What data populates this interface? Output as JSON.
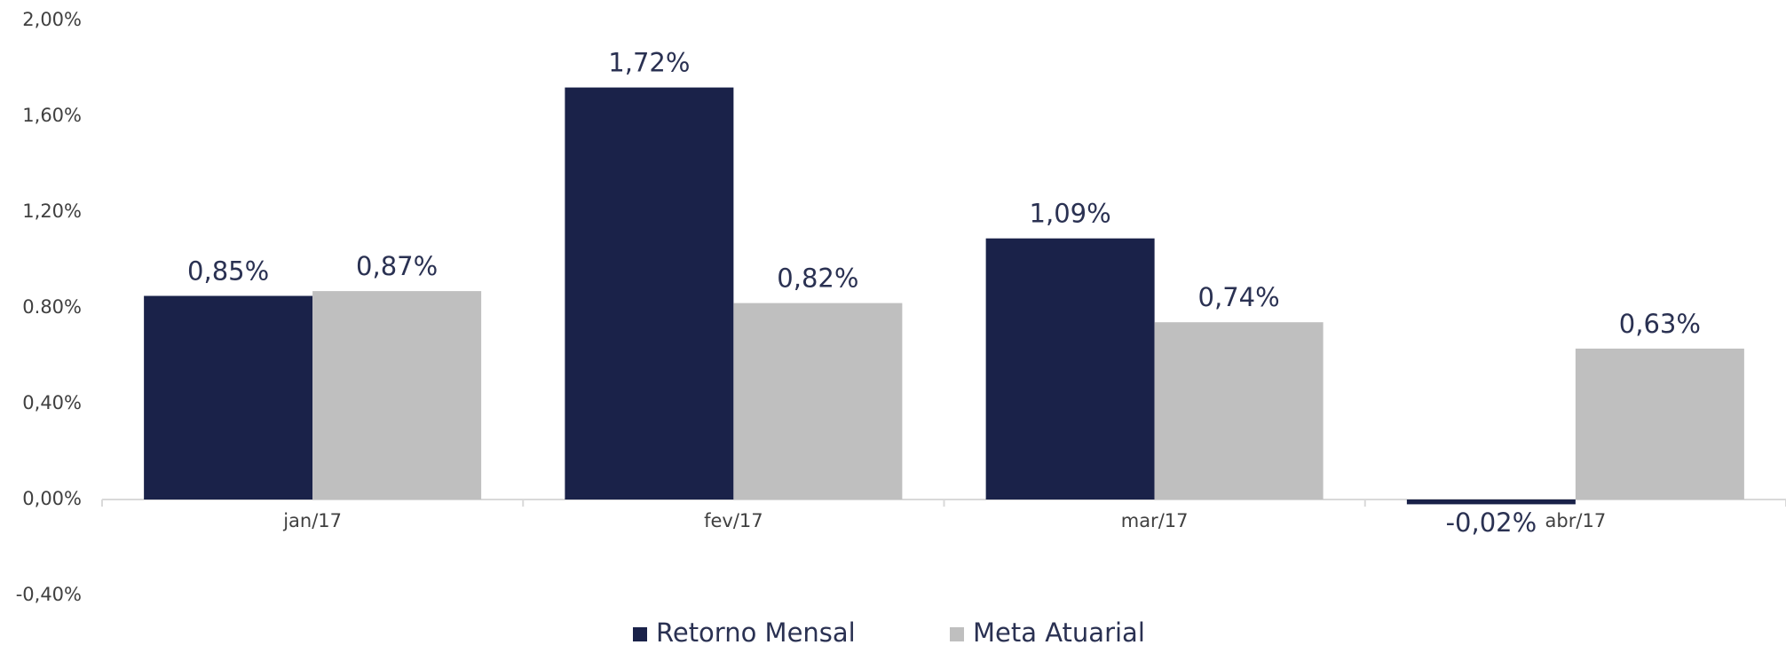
{
  "chart_data": {
    "type": "bar",
    "categories": [
      "jan/17",
      "fev/17",
      "mar/17",
      "abr/17"
    ],
    "series": [
      {
        "name": "Retorno Mensal",
        "color": "#1a2249",
        "values": [
          0.85,
          1.72,
          1.09,
          -0.02
        ],
        "value_labels": [
          "0,85%",
          "1,72%",
          "1,09%",
          "-0,02%"
        ]
      },
      {
        "name": "Meta Atuarial",
        "color": "#bfbfbf",
        "values": [
          0.87,
          0.82,
          0.74,
          0.63
        ],
        "value_labels": [
          "0,87%",
          "0,82%",
          "0,74%",
          "0,63%"
        ]
      }
    ],
    "ylim": [
      -0.4,
      2.0
    ],
    "yticks": [
      {
        "value": -0.4,
        "label": "-0,40%"
      },
      {
        "value": 0,
        "label": "0,00%"
      },
      {
        "value": 0.4,
        "label": "0,40%"
      },
      {
        "value": 0.8,
        "label": "0.80%"
      },
      {
        "value": 1.2,
        "label": "1,20%"
      },
      {
        "value": 1.6,
        "label": "1,60%"
      },
      {
        "value": 2.0,
        "label": "2,00%"
      }
    ],
    "grid": false,
    "legend": "bottom"
  }
}
